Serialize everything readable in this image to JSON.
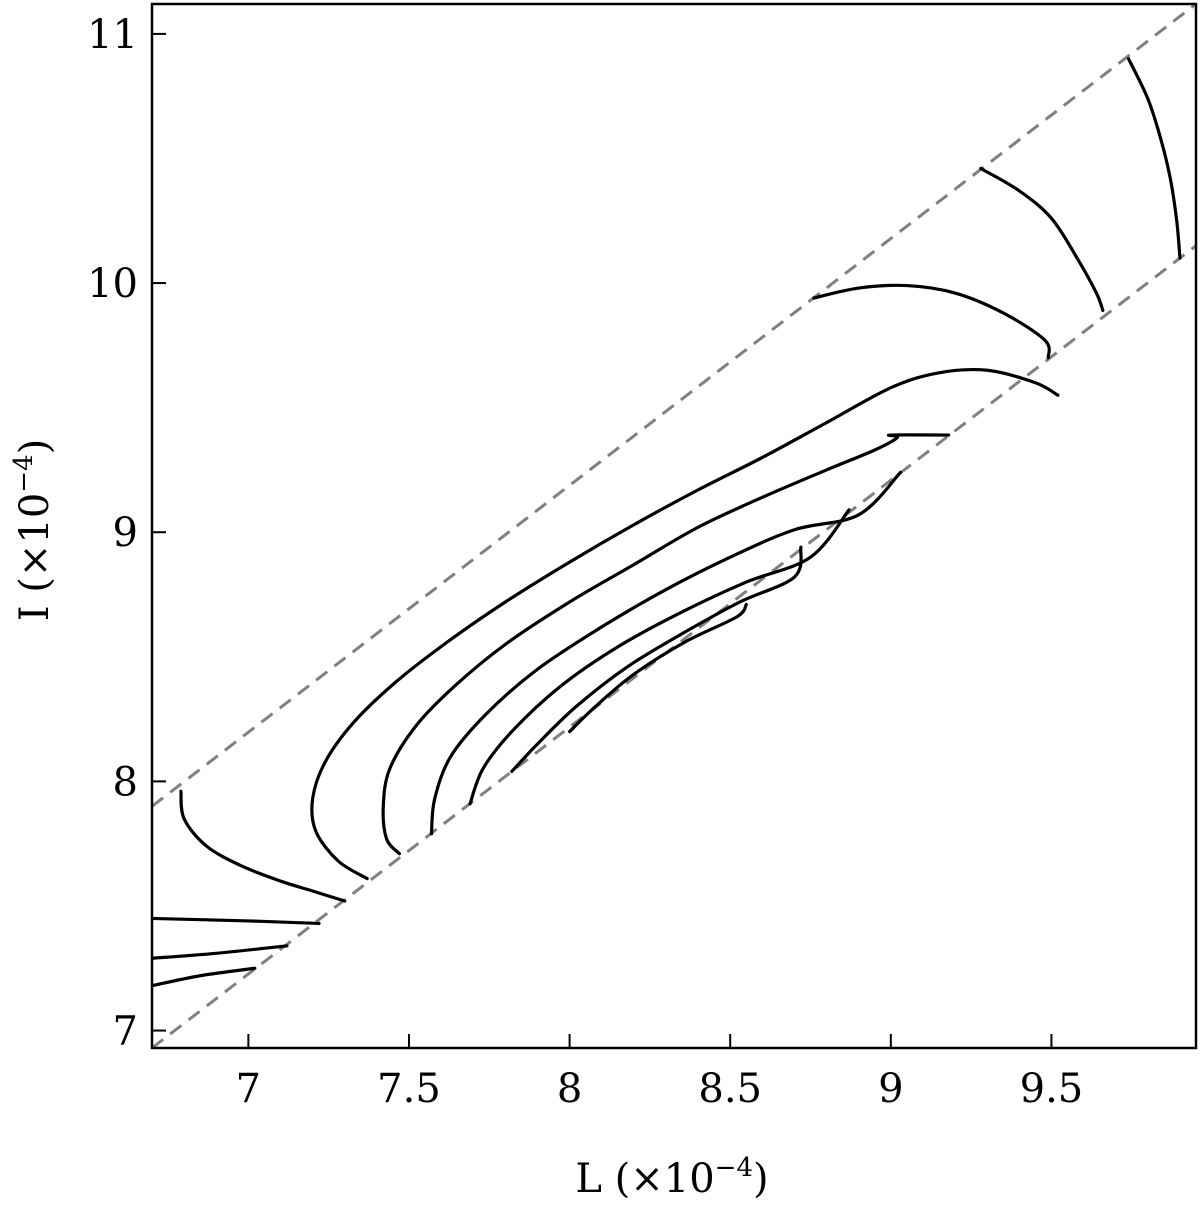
{
  "chart_data": {
    "type": "line",
    "title": "",
    "xlabel": {
      "base": "L (×10",
      "exp": "−4",
      "tail": ")"
    },
    "ylabel": {
      "base": "I (×10",
      "exp": "−4",
      "tail": ")"
    },
    "xlim": [
      6.7,
      9.95
    ],
    "ylim": [
      6.93,
      11.12
    ],
    "x_ticks": [
      7,
      7.5,
      8,
      8.5,
      9,
      9.5
    ],
    "x_tick_labels": [
      "7",
      "7.5",
      "8",
      "8.5",
      "9",
      "9.5"
    ],
    "y_ticks": [
      7,
      8,
      9,
      10,
      11
    ],
    "y_tick_labels": [
      "7",
      "8",
      "9",
      "10",
      "11"
    ],
    "grid": false,
    "legend": "none",
    "colors": {
      "contour": "#000000",
      "bound": "#808080",
      "frame": "#000000"
    },
    "bounds": [
      {
        "style": "dashed",
        "points": [
          [
            6.7,
            7.9
          ],
          [
            9.95,
            11.12
          ]
        ]
      },
      {
        "style": "dashed",
        "points": [
          [
            6.7,
            6.93
          ],
          [
            9.95,
            10.15
          ]
        ]
      }
    ],
    "series": [
      {
        "points": [
          [
            6.7,
            7.18
          ],
          [
            6.85,
            7.22
          ],
          [
            7.02,
            7.25
          ]
        ]
      },
      {
        "points": [
          [
            6.7,
            7.29
          ],
          [
            6.9,
            7.31
          ],
          [
            7.12,
            7.34
          ]
        ]
      },
      {
        "points": [
          [
            6.7,
            7.45
          ],
          [
            7.0,
            7.44
          ],
          [
            7.22,
            7.43
          ]
        ]
      },
      {
        "points": [
          [
            6.79,
            7.96
          ],
          [
            6.8,
            7.85
          ],
          [
            6.87,
            7.74
          ],
          [
            6.98,
            7.66
          ],
          [
            7.1,
            7.6
          ],
          [
            7.2,
            7.56
          ],
          [
            7.3,
            7.52
          ]
        ]
      },
      {
        "points": [
          [
            7.37,
            7.61
          ],
          [
            7.28,
            7.68
          ],
          [
            7.21,
            7.8
          ],
          [
            7.2,
            7.93
          ],
          [
            7.24,
            8.08
          ],
          [
            7.33,
            8.24
          ],
          [
            7.46,
            8.4
          ],
          [
            7.62,
            8.56
          ],
          [
            7.8,
            8.72
          ],
          [
            8.0,
            8.88
          ],
          [
            8.2,
            9.03
          ],
          [
            8.4,
            9.17
          ],
          [
            8.6,
            9.3
          ],
          [
            8.8,
            9.44
          ],
          [
            9.0,
            9.58
          ],
          [
            9.15,
            9.64
          ],
          [
            9.3,
            9.65
          ],
          [
            9.45,
            9.6
          ],
          [
            9.52,
            9.55
          ]
        ]
      },
      {
        "points": [
          [
            7.47,
            7.71
          ],
          [
            7.43,
            7.77
          ],
          [
            7.42,
            7.9
          ],
          [
            7.44,
            8.05
          ],
          [
            7.52,
            8.22
          ],
          [
            7.64,
            8.38
          ],
          [
            7.8,
            8.55
          ],
          [
            8.0,
            8.72
          ],
          [
            8.2,
            8.87
          ],
          [
            8.4,
            9.02
          ],
          [
            8.6,
            9.14
          ],
          [
            8.8,
            9.25
          ],
          [
            8.95,
            9.33
          ],
          [
            9.02,
            9.38
          ],
          [
            9.0,
            9.39
          ],
          [
            9.18,
            9.39
          ]
        ]
      },
      {
        "points": [
          [
            7.57,
            7.79
          ],
          [
            7.58,
            7.93
          ],
          [
            7.63,
            8.1
          ],
          [
            7.74,
            8.27
          ],
          [
            7.9,
            8.45
          ],
          [
            8.1,
            8.62
          ],
          [
            8.3,
            8.77
          ],
          [
            8.5,
            8.9
          ],
          [
            8.7,
            9.01
          ],
          [
            8.9,
            9.07
          ],
          [
            9.03,
            9.24
          ]
        ]
      },
      {
        "points": [
          [
            7.69,
            7.91
          ],
          [
            7.73,
            8.05
          ],
          [
            7.82,
            8.2
          ],
          [
            7.97,
            8.38
          ],
          [
            8.15,
            8.54
          ],
          [
            8.35,
            8.68
          ],
          [
            8.55,
            8.8
          ],
          [
            8.75,
            8.9
          ],
          [
            8.87,
            9.09
          ]
        ]
      },
      {
        "points": [
          [
            7.82,
            8.04
          ],
          [
            7.9,
            8.15
          ],
          [
            8.02,
            8.3
          ],
          [
            8.18,
            8.46
          ],
          [
            8.36,
            8.6
          ],
          [
            8.53,
            8.72
          ],
          [
            8.7,
            8.82
          ],
          [
            8.72,
            8.94
          ]
        ]
      },
      {
        "points": [
          [
            8.0,
            8.2
          ],
          [
            8.08,
            8.3
          ],
          [
            8.2,
            8.43
          ],
          [
            8.36,
            8.56
          ],
          [
            8.52,
            8.66
          ],
          [
            8.55,
            8.71
          ]
        ]
      },
      {
        "points": [
          [
            8.76,
            9.94
          ],
          [
            8.9,
            9.98
          ],
          [
            9.05,
            9.99
          ],
          [
            9.2,
            9.96
          ],
          [
            9.35,
            9.88
          ],
          [
            9.48,
            9.77
          ],
          [
            9.49,
            9.7
          ]
        ]
      },
      {
        "points": [
          [
            9.28,
            10.46
          ],
          [
            9.4,
            10.37
          ],
          [
            9.5,
            10.26
          ],
          [
            9.58,
            10.1
          ],
          [
            9.64,
            9.96
          ],
          [
            9.66,
            9.89
          ]
        ]
      },
      {
        "points": [
          [
            9.74,
            10.9
          ],
          [
            9.8,
            10.74
          ],
          [
            9.84,
            10.58
          ],
          [
            9.87,
            10.42
          ],
          [
            9.89,
            10.25
          ],
          [
            9.9,
            10.1
          ]
        ]
      }
    ]
  }
}
